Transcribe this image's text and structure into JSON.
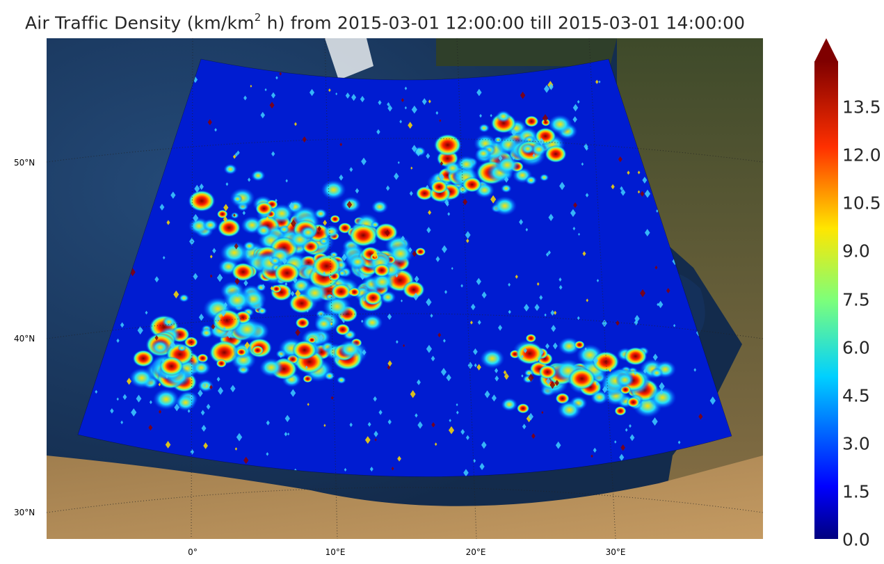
{
  "title": {
    "prefix": "Air Traffic Density (km/km",
    "superscript": "2",
    "suffix": " h) from 2015-03-01 12:00:00 till 2015-03-01 14:00:00"
  },
  "map": {
    "lat_labels": [
      "50°N",
      "40°N",
      "30°N"
    ],
    "lon_labels": [
      "0°",
      "10°E",
      "20°E",
      "30°E"
    ]
  },
  "colorbar": {
    "ticks": [
      "13.5",
      "12.0",
      "10.5",
      "9.0",
      "7.5",
      "6.0",
      "4.5",
      "3.0",
      "1.5",
      "0.0"
    ],
    "colormap": "jet",
    "extend": "max"
  },
  "colors": {
    "ocean": "#1b3a63",
    "land": "#6f5a3a",
    "density_low": "#00008f",
    "density_high": "#7f0000"
  }
}
